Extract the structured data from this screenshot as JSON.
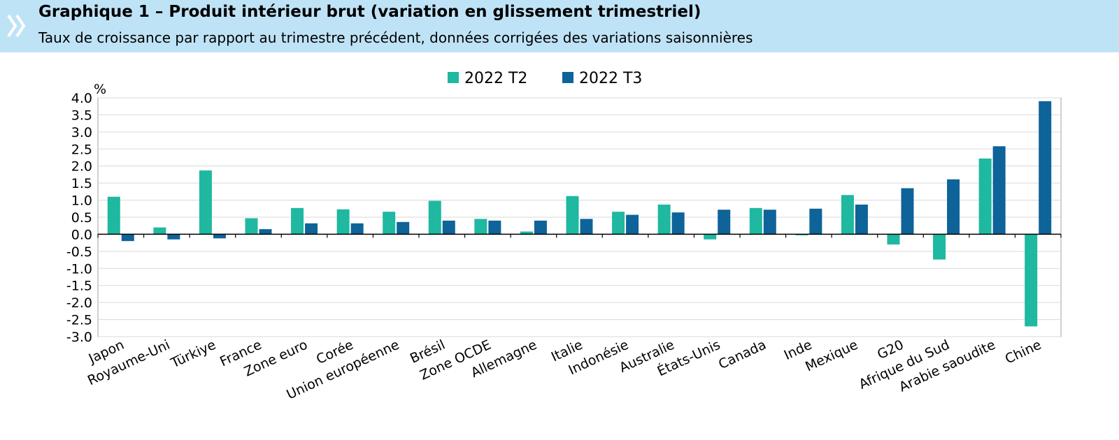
{
  "header": {
    "title": "Graphique 1 – Produit intérieur brut (variation en glissement trimestriel)",
    "subtitle": "Taux de croissance par rapport au trimestre précédent, données corrigées des variations saisonnières"
  },
  "chart_data": {
    "type": "bar",
    "title": "Graphique 1 – Produit intérieur brut (variation en glissement trimestriel)",
    "subtitle": "Taux de croissance par rapport au trimestre précédent, données corrigées des variations saisonnières",
    "ylabel": "%",
    "xlabel": "",
    "ylim": [
      -3.0,
      4.0
    ],
    "yticks": [
      "4.0",
      "3.5",
      "3.0",
      "2.5",
      "2.0",
      "1.5",
      "1.0",
      "0.5",
      "0.0",
      "-0.5",
      "-1.0",
      "-1.5",
      "-2.0",
      "-2.5",
      "-3.0"
    ],
    "ytick_values": [
      4.0,
      3.5,
      3.0,
      2.5,
      2.0,
      1.5,
      1.0,
      0.5,
      0.0,
      -0.5,
      -1.0,
      -1.5,
      -2.0,
      -2.5,
      -3.0
    ],
    "grid": true,
    "legend_position": "top-center",
    "categories": [
      "Japon",
      "Royaume-Uni",
      "Türkiye",
      "France",
      "Zone euro",
      "Corée",
      "Union européenne",
      "Brésil",
      "Zone OCDE",
      "Allemagne",
      "Italie",
      "Indonésie",
      "Australie",
      "États-Unis",
      "Canada",
      "Inde",
      "Mexique",
      "G20",
      "Afrique du Sud",
      "Arabie saoudite",
      "Chine"
    ],
    "series": [
      {
        "name": "2022 T2",
        "color": "#1fb8a0",
        "values": [
          1.1,
          0.2,
          1.87,
          0.47,
          0.77,
          0.73,
          0.66,
          0.98,
          0.45,
          0.08,
          1.12,
          0.66,
          0.87,
          -0.15,
          0.77,
          -0.03,
          1.15,
          -0.3,
          -0.74,
          2.22,
          -2.7
        ]
      },
      {
        "name": "2022 T3",
        "color": "#0e6399",
        "values": [
          -0.2,
          -0.15,
          -0.12,
          0.15,
          0.32,
          0.32,
          0.36,
          0.4,
          0.4,
          0.4,
          0.45,
          0.57,
          0.64,
          0.72,
          0.72,
          0.75,
          0.87,
          1.35,
          1.61,
          2.58,
          3.9
        ]
      }
    ]
  }
}
